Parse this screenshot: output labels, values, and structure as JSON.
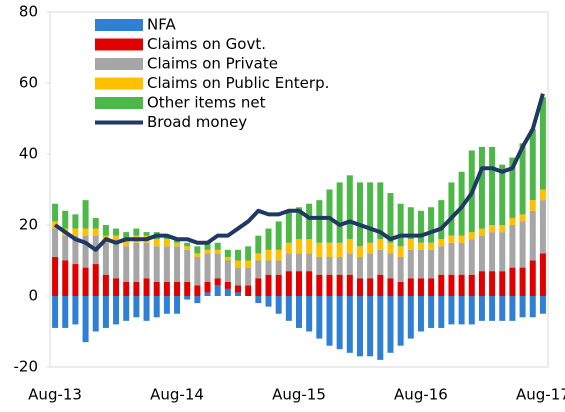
{
  "chart_data": {
    "type": "bar",
    "categories": [
      "Aug-13",
      null,
      null,
      null,
      null,
      null,
      null,
      null,
      null,
      null,
      null,
      null,
      "Aug-14",
      null,
      null,
      null,
      null,
      null,
      null,
      null,
      null,
      null,
      null,
      null,
      "Aug-15",
      null,
      null,
      null,
      null,
      null,
      null,
      null,
      null,
      null,
      null,
      null,
      "Aug-16",
      null,
      null,
      null,
      null,
      null,
      null,
      null,
      null,
      null,
      null,
      null,
      "Aug-17"
    ],
    "series": [
      {
        "name": "NFA",
        "type": "bar",
        "color": "#2f80d4",
        "values": [
          -9,
          -9,
          -8,
          -13,
          -10,
          -9,
          -8,
          -7,
          -6,
          -7,
          -6,
          -5,
          -5,
          -1,
          -2,
          1,
          3,
          2,
          1,
          0,
          -2,
          -3,
          -5,
          -7,
          -9,
          -10,
          -12,
          -14,
          -15,
          -16,
          -17,
          -17,
          -18,
          -16,
          -14,
          -12,
          -10,
          -9,
          -9,
          -8,
          -8,
          -8,
          -7,
          -7,
          -7,
          -7,
          -6,
          -6,
          -5
        ]
      },
      {
        "name": "Claims on Govt.",
        "type": "bar",
        "color": "#e00000",
        "values": [
          11,
          10,
          9,
          8,
          9,
          6,
          5,
          4,
          4,
          5,
          4,
          4,
          4,
          4,
          3,
          3,
          2,
          2,
          2,
          3,
          5,
          6,
          6,
          7,
          7,
          7,
          6,
          6,
          6,
          6,
          5,
          5,
          6,
          5,
          4,
          5,
          5,
          5,
          6,
          6,
          6,
          6,
          7,
          7,
          7,
          8,
          8,
          10,
          12
        ]
      },
      {
        "name": "Claims on Private",
        "type": "bar",
        "color": "#a6a6a6",
        "values": [
          8,
          7,
          8,
          9,
          8,
          9,
          10,
          10,
          11,
          10,
          10,
          10,
          10,
          9,
          8,
          8,
          7,
          6,
          5,
          5,
          5,
          4,
          4,
          5,
          5,
          5,
          5,
          5,
          5,
          6,
          6,
          7,
          7,
          7,
          7,
          8,
          8,
          8,
          8,
          9,
          9,
          10,
          10,
          11,
          11,
          12,
          13,
          14,
          15
        ]
      },
      {
        "name": "Claims on Public Enterp.",
        "type": "bar",
        "color": "#ffc000",
        "values": [
          2,
          2,
          2,
          2,
          2,
          2,
          2,
          2,
          2,
          2,
          2,
          2,
          1,
          1,
          1,
          1,
          1,
          1,
          2,
          2,
          2,
          3,
          3,
          3,
          4,
          4,
          4,
          4,
          4,
          4,
          3,
          3,
          3,
          3,
          3,
          3,
          2,
          2,
          2,
          2,
          2,
          2,
          2,
          2,
          2,
          2,
          2,
          3,
          3
        ]
      },
      {
        "name": "Other items net",
        "type": "bar",
        "color": "#4cb848",
        "values": [
          5,
          5,
          4,
          8,
          3,
          3,
          2,
          2,
          2,
          1,
          2,
          1,
          1,
          1,
          2,
          2,
          2,
          2,
          3,
          4,
          5,
          6,
          8,
          9,
          9,
          10,
          12,
          15,
          17,
          18,
          18,
          17,
          16,
          14,
          12,
          9,
          9,
          10,
          11,
          15,
          18,
          23,
          23,
          22,
          17,
          17,
          20,
          20,
          26
        ]
      },
      {
        "name": "Broad money",
        "type": "line",
        "color": "#1f3864",
        "values": [
          20,
          18,
          16,
          15,
          13,
          16,
          15,
          16,
          16,
          16,
          17,
          17,
          16,
          16,
          15,
          15,
          17,
          17,
          19,
          21,
          24,
          23,
          23,
          24,
          24,
          22,
          22,
          22,
          20,
          21,
          20,
          19,
          18,
          16,
          17,
          17,
          17,
          18,
          19,
          22,
          25,
          29,
          36,
          36,
          35,
          36,
          42,
          47,
          57
        ]
      }
    ],
    "ylim": [
      -20,
      80
    ],
    "yticks": [
      -20,
      0,
      20,
      40,
      60,
      80
    ],
    "legend": "upper left"
  }
}
